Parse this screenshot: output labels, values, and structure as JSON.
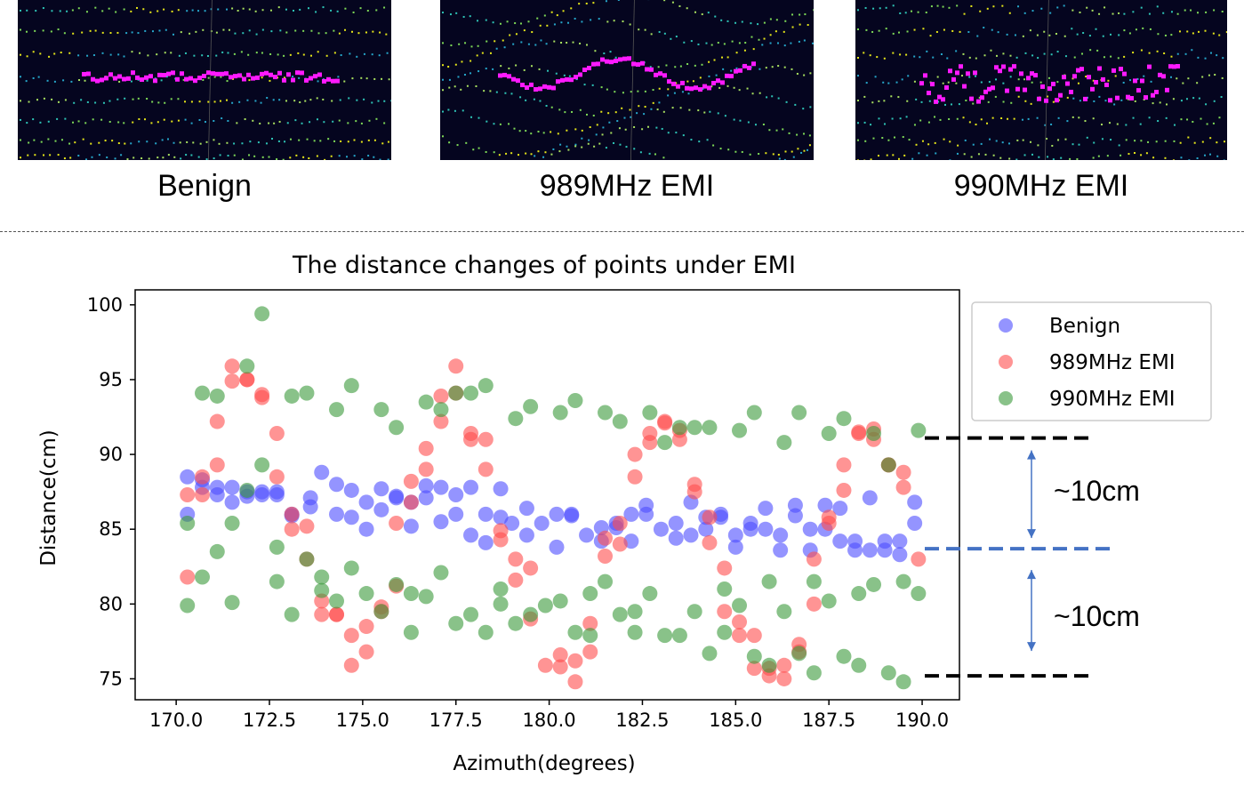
{
  "panels": [
    {
      "caption": "Benign",
      "pattern": "flat"
    },
    {
      "caption": "989MHz EMI",
      "pattern": "wavy"
    },
    {
      "caption": "990MHz EMI",
      "pattern": "spread"
    }
  ],
  "colors": {
    "panel_bg": "#05051f",
    "highlight": "#ff1aff",
    "benign": "#4d4dff",
    "emi989": "#ff4d4d",
    "emi990": "#3a9a3a",
    "ref_black": "#000000",
    "ref_blue": "#4472c4",
    "arrow": "#4472c4"
  },
  "annotations": {
    "upper_gap": "~10cm",
    "lower_gap": "~10cm"
  },
  "chart_data": {
    "type": "scatter",
    "title": "The distance changes of points under EMI",
    "xlabel": "Azimuth(degrees)",
    "ylabel": "Distance(cm)",
    "xlim": [
      168.9,
      191.0
    ],
    "ylim": [
      73.6,
      101.0
    ],
    "xticks": [
      170.0,
      172.5,
      175.0,
      177.5,
      180.0,
      182.5,
      185.0,
      187.5,
      190.0
    ],
    "xtick_labels": [
      "170.0",
      "172.5",
      "175.0",
      "177.5",
      "180.0",
      "182.5",
      "185.0",
      "187.5",
      "190.0"
    ],
    "yticks": [
      75,
      80,
      85,
      90,
      95,
      100
    ],
    "ytick_labels": [
      "75",
      "80",
      "85",
      "90",
      "95",
      "100"
    ],
    "legend_position": "upper-right-outside",
    "reference_lines": [
      {
        "y": 91.1,
        "style": "dashed",
        "color": "black"
      },
      {
        "y": 83.7,
        "style": "dashed",
        "color": "blue"
      },
      {
        "y": 75.2,
        "style": "dashed",
        "color": "black"
      }
    ],
    "series": [
      {
        "name": "Benign",
        "x": [
          170.3,
          170.3,
          170.7,
          170.7,
          171.1,
          171.1,
          171.5,
          171.5,
          171.9,
          171.9,
          172.3,
          172.3,
          172.7,
          172.7,
          173.1,
          173.1,
          173.6,
          173.6,
          173.9,
          174.3,
          174.3,
          174.7,
          174.7,
          175.1,
          175.1,
          175.5,
          175.5,
          175.9,
          175.9,
          176.3,
          176.3,
          176.7,
          176.7,
          177.1,
          177.1,
          177.5,
          177.5,
          177.9,
          177.9,
          178.3,
          178.3,
          178.7,
          178.7,
          179.0,
          179.4,
          179.4,
          179.8,
          180.2,
          180.2,
          180.6,
          180.6,
          181.0,
          181.4,
          181.4,
          181.8,
          181.8,
          182.2,
          182.2,
          182.6,
          182.6,
          183.0,
          183.4,
          183.4,
          183.8,
          183.8,
          184.2,
          184.2,
          184.6,
          184.6,
          185.0,
          185.0,
          185.4,
          185.4,
          185.8,
          185.8,
          186.2,
          186.2,
          186.6,
          186.6,
          187.0,
          187.0,
          187.4,
          187.4,
          187.8,
          187.8,
          188.2,
          188.2,
          188.6,
          188.6,
          189.0,
          189.0,
          189.4,
          189.4,
          189.8,
          189.8
        ],
        "y": [
          88.5,
          86.0,
          88.3,
          87.8,
          87.8,
          87.3,
          87.8,
          86.8,
          87.5,
          87.2,
          87.5,
          87.3,
          87.5,
          87.3,
          86.0,
          85.9,
          86.5,
          87.1,
          88.8,
          88.0,
          86.0,
          87.6,
          85.8,
          86.8,
          85.0,
          87.7,
          86.3,
          87.1,
          87.2,
          86.8,
          85.2,
          87.9,
          87.1,
          87.8,
          85.5,
          86.0,
          87.3,
          87.8,
          84.6,
          86.0,
          84.1,
          87.7,
          85.8,
          85.4,
          86.4,
          84.6,
          85.4,
          86.0,
          83.8,
          86.0,
          85.9,
          84.6,
          84.2,
          85.1,
          85.4,
          85.1,
          86.0,
          84.2,
          86.6,
          86.0,
          85.0,
          85.4,
          84.4,
          86.8,
          84.6,
          85.8,
          85.0,
          86.0,
          85.8,
          84.6,
          83.8,
          85.4,
          85.0,
          85.0,
          86.4,
          84.6,
          83.6,
          85.9,
          86.6,
          85.0,
          83.6,
          85.0,
          86.6,
          84.2,
          86.4,
          84.2,
          83.6,
          87.1,
          83.6,
          84.2,
          83.6,
          84.2,
          83.3,
          86.8,
          85.4
        ]
      },
      {
        "name": "989MHz EMI",
        "x": [
          170.3,
          170.3,
          170.7,
          170.7,
          171.1,
          171.1,
          171.5,
          171.5,
          171.9,
          171.9,
          172.3,
          172.3,
          172.7,
          172.7,
          173.1,
          173.1,
          173.5,
          173.5,
          173.9,
          173.9,
          174.3,
          174.3,
          174.7,
          174.7,
          175.1,
          175.1,
          175.5,
          175.5,
          175.9,
          175.9,
          176.3,
          176.3,
          176.7,
          176.7,
          177.1,
          177.1,
          177.5,
          177.5,
          177.9,
          177.9,
          178.3,
          178.3,
          178.7,
          178.7,
          179.1,
          179.1,
          179.5,
          179.5,
          179.9,
          180.3,
          180.3,
          180.7,
          180.7,
          181.1,
          181.1,
          181.5,
          181.5,
          181.9,
          181.9,
          182.3,
          182.3,
          182.7,
          182.7,
          183.1,
          183.1,
          183.5,
          183.5,
          183.9,
          183.9,
          184.3,
          184.3,
          184.7,
          184.7,
          185.1,
          185.1,
          185.5,
          185.5,
          185.9,
          185.9,
          186.3,
          186.3,
          186.7,
          186.7,
          187.1,
          187.1,
          187.5,
          187.5,
          187.9,
          187.9,
          188.3,
          188.3,
          188.7,
          188.7,
          189.1,
          189.1,
          189.5,
          189.5,
          189.9
        ],
        "y": [
          87.3,
          81.8,
          88.5,
          87.3,
          92.2,
          89.3,
          95.9,
          94.9,
          95.0,
          95.0,
          94.0,
          93.8,
          91.4,
          88.5,
          85.0,
          86.0,
          85.2,
          83.0,
          80.2,
          79.3,
          79.3,
          79.3,
          77.9,
          75.9,
          78.5,
          76.8,
          79.5,
          79.8,
          81.2,
          85.4,
          88.2,
          86.8,
          90.4,
          89.0,
          92.2,
          93.9,
          95.9,
          94.1,
          91.4,
          91.0,
          91.0,
          89.0,
          84.9,
          84.3,
          83.0,
          81.6,
          82.4,
          79.0,
          75.9,
          76.6,
          75.8,
          74.8,
          76.2,
          76.8,
          78.7,
          83.2,
          84.4,
          85.4,
          84.0,
          88.5,
          90.0,
          90.8,
          91.4,
          92.2,
          92.1,
          91.6,
          91.0,
          88.0,
          87.5,
          84.1,
          85.8,
          79.5,
          82.4,
          78.8,
          77.9,
          77.9,
          75.7,
          75.7,
          75.2,
          75.0,
          75.9,
          77.3,
          76.8,
          80.0,
          83.0,
          85.4,
          85.8,
          87.6,
          89.3,
          91.5,
          91.4,
          91.7,
          91.0,
          89.3,
          89.3,
          88.8,
          87.8,
          83.0
        ]
      },
      {
        "name": "990MHz EMI",
        "x": [
          170.3,
          170.3,
          170.7,
          170.7,
          171.1,
          171.1,
          171.5,
          171.5,
          171.9,
          171.9,
          172.3,
          172.3,
          172.7,
          172.7,
          173.1,
          173.1,
          173.5,
          173.5,
          173.9,
          173.9,
          174.3,
          174.3,
          174.7,
          174.7,
          175.1,
          175.5,
          175.5,
          175.9,
          175.9,
          176.3,
          176.3,
          176.7,
          176.7,
          177.1,
          177.1,
          177.5,
          177.5,
          177.9,
          177.9,
          178.3,
          178.3,
          178.7,
          178.7,
          179.1,
          179.1,
          179.5,
          179.5,
          179.9,
          180.3,
          180.3,
          180.7,
          180.7,
          181.1,
          181.1,
          181.5,
          181.5,
          181.9,
          181.9,
          182.3,
          182.3,
          182.7,
          182.7,
          183.1,
          183.1,
          183.5,
          183.5,
          183.9,
          183.9,
          184.3,
          184.3,
          184.7,
          184.7,
          185.1,
          185.1,
          185.5,
          185.5,
          185.9,
          185.9,
          186.3,
          186.3,
          186.7,
          186.7,
          187.1,
          187.1,
          187.5,
          187.5,
          187.9,
          187.9,
          188.3,
          188.3,
          188.7,
          188.7,
          189.1,
          189.1,
          189.5,
          189.5,
          189.9,
          189.9
        ],
        "y": [
          85.4,
          79.9,
          94.1,
          81.8,
          93.9,
          83.5,
          85.4,
          80.1,
          95.9,
          87.6,
          99.4,
          89.3,
          83.8,
          81.5,
          93.9,
          79.3,
          94.1,
          83.0,
          81.8,
          80.9,
          93.0,
          80.2,
          94.6,
          82.4,
          80.7,
          93.0,
          79.5,
          91.8,
          81.3,
          80.7,
          78.1,
          93.5,
          80.5,
          93.0,
          82.1,
          94.1,
          78.7,
          94.1,
          79.3,
          94.6,
          78.1,
          81.0,
          80.0,
          92.4,
          78.7,
          93.2,
          79.3,
          79.9,
          92.8,
          80.2,
          93.6,
          78.1,
          80.7,
          77.9,
          92.8,
          81.5,
          92.2,
          79.3,
          79.5,
          78.1,
          92.8,
          80.7,
          77.9,
          90.8,
          91.8,
          77.9,
          91.8,
          79.5,
          91.8,
          76.7,
          81.0,
          78.1,
          91.6,
          79.9,
          92.8,
          76.5,
          81.5,
          75.9,
          90.8,
          79.5,
          92.8,
          76.7,
          81.5,
          75.4,
          91.4,
          80.2,
          92.4,
          76.5,
          80.7,
          75.9,
          81.3,
          91.4,
          89.3,
          75.4,
          81.5,
          74.8,
          91.6,
          80.7
        ]
      }
    ]
  }
}
